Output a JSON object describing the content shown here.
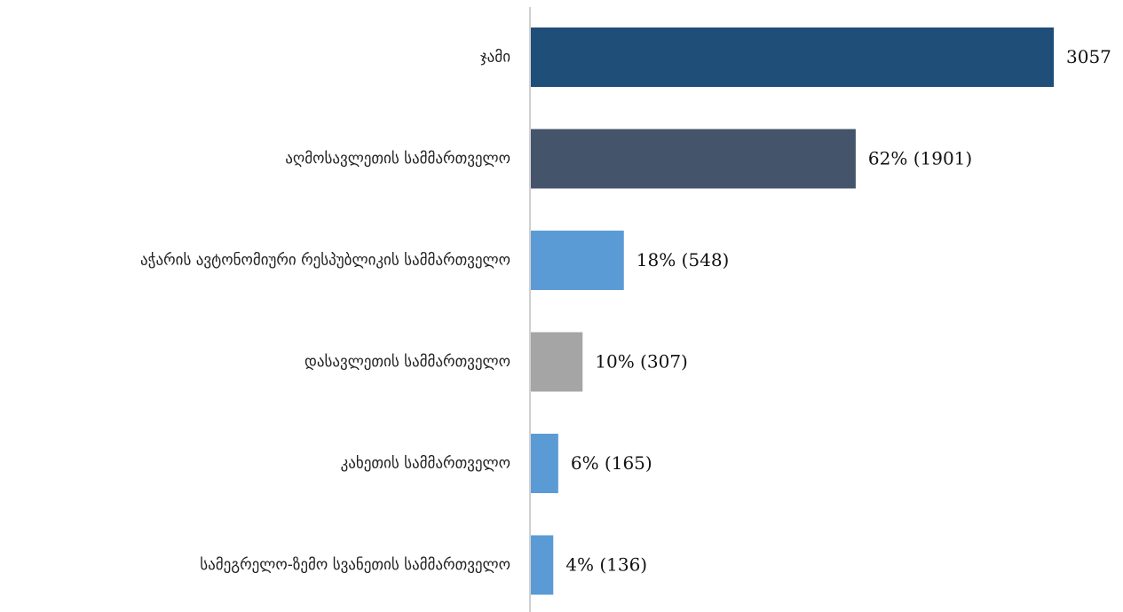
{
  "chart_data": {
    "type": "bar",
    "orientation": "horizontal",
    "categories": [
      "ჯამი",
      "აღმოსავლეთის სამმართველო",
      "აჭარის ავტონომიური რესპუბლიკის სამმართველო",
      "დასავლეთის სამმართველო",
      "კახეთის სამმართველო",
      "სამეგრელო-ზემო სვანეთის სამმართველო"
    ],
    "values": [
      3057,
      1901,
      548,
      307,
      165,
      136
    ],
    "data_labels": [
      "3057",
      "62% (1901)",
      "18% (548)",
      "10% (307)",
      "6% (165)",
      "4% (136)"
    ],
    "colors": [
      "#1f4e79",
      "#44546a",
      "#5b9bd5",
      "#a5a5a5",
      "#5b9bd5",
      "#5b9bd5"
    ],
    "xlim": [
      0,
      3057
    ],
    "grid": false,
    "legend": "none",
    "title": "",
    "xlabel": "",
    "ylabel": ""
  }
}
